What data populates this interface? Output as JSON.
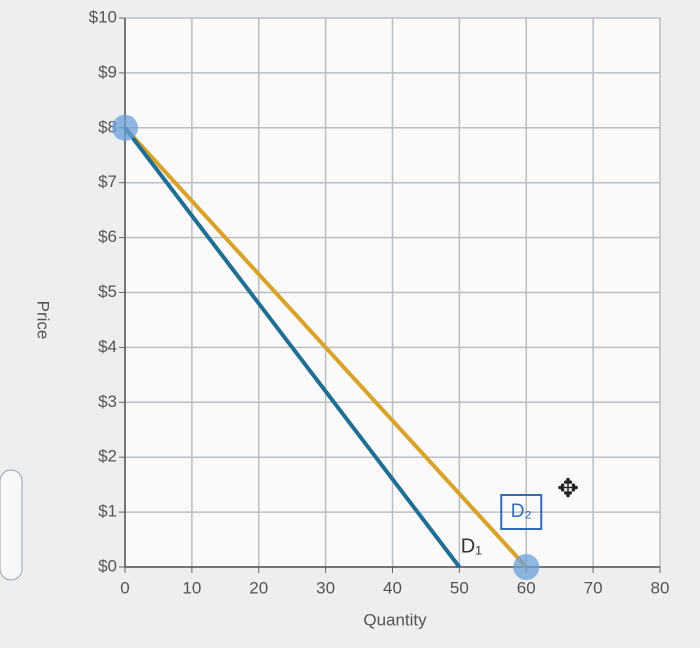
{
  "chart_data": {
    "type": "line",
    "x_label": "Quantity",
    "y_label": "Price",
    "series": [
      {
        "name": "D₁",
        "color": "#1f6f95",
        "x": [
          0,
          50
        ],
        "values": [
          8,
          0
        ]
      },
      {
        "name": "D₂",
        "color": "#d9a22a",
        "x": [
          0,
          60
        ],
        "values": [
          8,
          0
        ]
      }
    ],
    "xlim": [
      0,
      80
    ],
    "ylim": [
      0,
      10
    ],
    "xticks": [
      0,
      10,
      20,
      30,
      40,
      50,
      60,
      70,
      80
    ],
    "yticks": [
      {
        "value": 0,
        "label": "$0"
      },
      {
        "value": 1,
        "label": "$1"
      },
      {
        "value": 2,
        "label": "$2"
      },
      {
        "value": 3,
        "label": "$3"
      },
      {
        "value": 4,
        "label": "$4"
      },
      {
        "value": 5,
        "label": "$5"
      },
      {
        "value": 6,
        "label": "$6"
      },
      {
        "value": 7,
        "label": "$7"
      },
      {
        "value": 8,
        "label": "$8"
      },
      {
        "value": 9,
        "label": "$9"
      },
      {
        "value": 10,
        "label": "$10"
      }
    ],
    "grid": true
  }
}
